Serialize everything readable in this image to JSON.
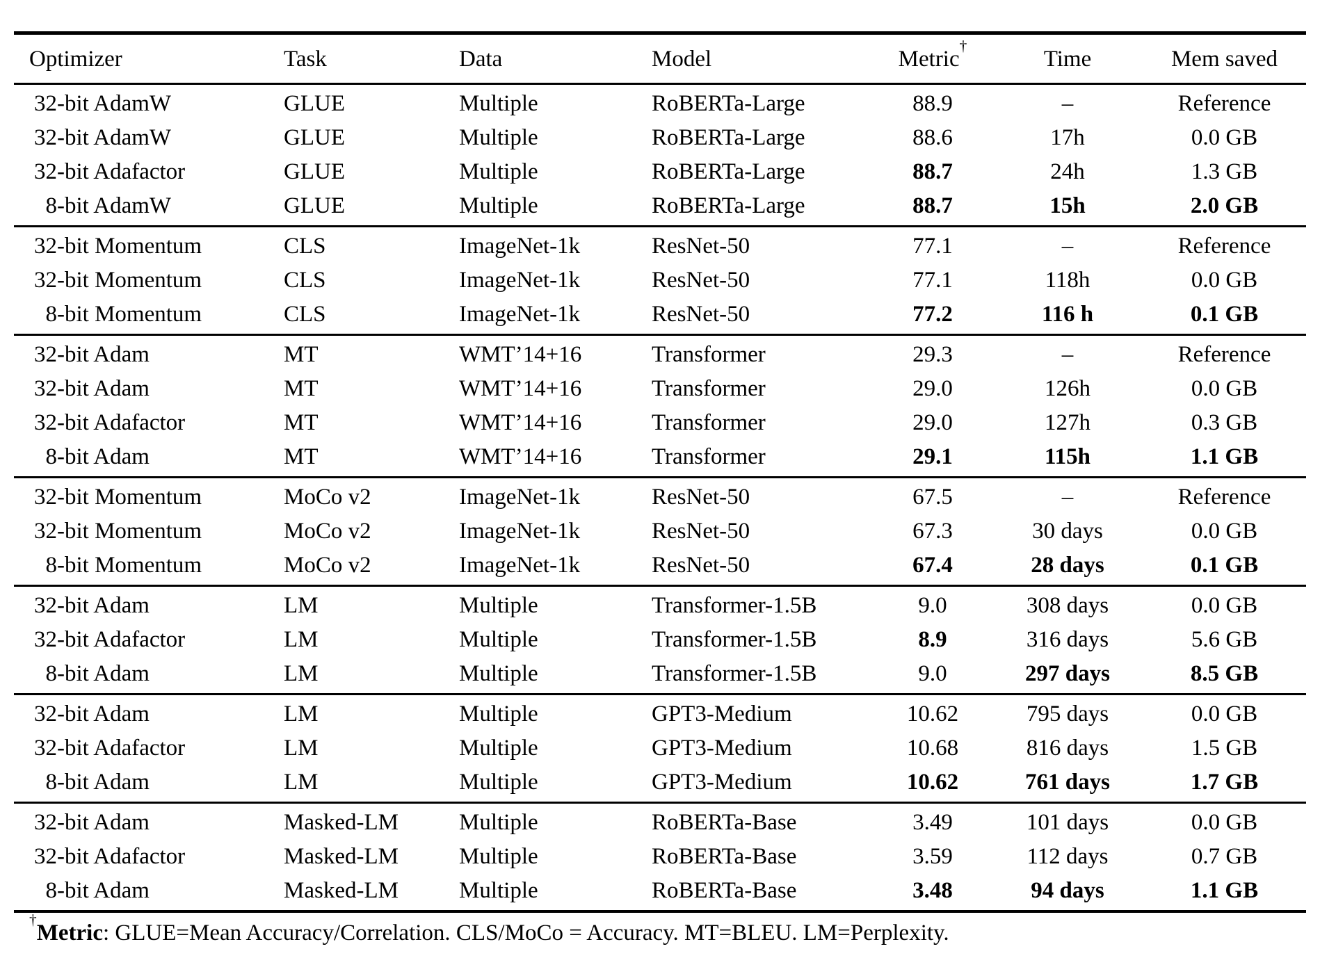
{
  "table": {
    "columns": [
      {
        "label": "Optimizer",
        "align": "left"
      },
      {
        "label": "Task",
        "align": "left"
      },
      {
        "label": "Data",
        "align": "left"
      },
      {
        "label": "Model",
        "align": "left"
      },
      {
        "label": "Metric",
        "sup": "†",
        "align": "center"
      },
      {
        "label": "Time",
        "align": "center"
      },
      {
        "label": "Mem saved",
        "align": "center"
      }
    ],
    "groups": [
      {
        "rows": [
          {
            "cells": [
              "32-bit AdamW",
              "GLUE",
              "Multiple",
              "RoBERTa-Large",
              "88.9",
              "–",
              "Reference"
            ],
            "bold": []
          },
          {
            "cells": [
              "32-bit AdamW",
              "GLUE",
              "Multiple",
              "RoBERTa-Large",
              "88.6",
              "17h",
              "0.0 GB"
            ],
            "bold": []
          },
          {
            "cells": [
              "32-bit Adafactor",
              "GLUE",
              "Multiple",
              "RoBERTa-Large",
              "88.7",
              "24h",
              "1.3 GB"
            ],
            "bold": [
              4
            ]
          },
          {
            "cells": [
              "8-bit AdamW",
              "GLUE",
              "Multiple",
              "RoBERTa-Large",
              "88.7",
              "15h",
              "2.0 GB"
            ],
            "bold": [
              4,
              5,
              6
            ]
          }
        ]
      },
      {
        "rows": [
          {
            "cells": [
              "32-bit Momentum",
              "CLS",
              "ImageNet-1k",
              "ResNet-50",
              "77.1",
              "–",
              "Reference"
            ],
            "bold": []
          },
          {
            "cells": [
              "32-bit Momentum",
              "CLS",
              "ImageNet-1k",
              "ResNet-50",
              "77.1",
              "118h",
              "0.0 GB"
            ],
            "bold": []
          },
          {
            "cells": [
              "8-bit Momentum",
              "CLS",
              "ImageNet-1k",
              "ResNet-50",
              "77.2",
              "116 h",
              "0.1 GB"
            ],
            "bold": [
              4,
              5,
              6
            ]
          }
        ]
      },
      {
        "rows": [
          {
            "cells": [
              "32-bit Adam",
              "MT",
              "WMT’14+16",
              "Transformer",
              "29.3",
              "–",
              "Reference"
            ],
            "bold": []
          },
          {
            "cells": [
              "32-bit Adam",
              "MT",
              "WMT’14+16",
              "Transformer",
              "29.0",
              "126h",
              "0.0 GB"
            ],
            "bold": []
          },
          {
            "cells": [
              "32-bit Adafactor",
              "MT",
              "WMT’14+16",
              "Transformer",
              "29.0",
              "127h",
              "0.3 GB"
            ],
            "bold": []
          },
          {
            "cells": [
              "8-bit Adam",
              "MT",
              "WMT’14+16",
              "Transformer",
              "29.1",
              "115h",
              "1.1 GB"
            ],
            "bold": [
              4,
              5,
              6
            ]
          }
        ]
      },
      {
        "rows": [
          {
            "cells": [
              "32-bit Momentum",
              "MoCo v2",
              "ImageNet-1k",
              "ResNet-50",
              "67.5",
              "–",
              "Reference"
            ],
            "bold": []
          },
          {
            "cells": [
              "32-bit Momentum",
              "MoCo v2",
              "ImageNet-1k",
              "ResNet-50",
              "67.3",
              "30 days",
              "0.0 GB"
            ],
            "bold": []
          },
          {
            "cells": [
              "8-bit Momentum",
              "MoCo v2",
              "ImageNet-1k",
              "ResNet-50",
              "67.4",
              "28 days",
              "0.1 GB"
            ],
            "bold": [
              4,
              5,
              6
            ]
          }
        ]
      },
      {
        "rows": [
          {
            "cells": [
              "32-bit Adam",
              "LM",
              "Multiple",
              "Transformer-1.5B",
              "9.0",
              "308 days",
              "0.0 GB"
            ],
            "bold": []
          },
          {
            "cells": [
              "32-bit Adafactor",
              "LM",
              "Multiple",
              "Transformer-1.5B",
              "8.9",
              "316 days",
              "5.6 GB"
            ],
            "bold": [
              4
            ]
          },
          {
            "cells": [
              "8-bit Adam",
              "LM",
              "Multiple",
              "Transformer-1.5B",
              "9.0",
              "297 days",
              "8.5 GB"
            ],
            "bold": [
              5,
              6
            ]
          }
        ]
      },
      {
        "rows": [
          {
            "cells": [
              "32-bit Adam",
              "LM",
              "Multiple",
              "GPT3-Medium",
              "10.62",
              "795 days",
              "0.0 GB"
            ],
            "bold": []
          },
          {
            "cells": [
              "32-bit Adafactor",
              "LM",
              "Multiple",
              "GPT3-Medium",
              "10.68",
              "816 days",
              "1.5 GB"
            ],
            "bold": []
          },
          {
            "cells": [
              "8-bit Adam",
              "LM",
              "Multiple",
              "GPT3-Medium",
              "10.62",
              "761 days",
              "1.7 GB"
            ],
            "bold": [
              4,
              5,
              6
            ]
          }
        ]
      },
      {
        "rows": [
          {
            "cells": [
              "32-bit Adam",
              "Masked-LM",
              "Multiple",
              "RoBERTa-Base",
              "3.49",
              "101 days",
              "0.0 GB"
            ],
            "bold": []
          },
          {
            "cells": [
              "32-bit Adafactor",
              "Masked-LM",
              "Multiple",
              "RoBERTa-Base",
              "3.59",
              "112 days",
              "0.7 GB"
            ],
            "bold": []
          },
          {
            "cells": [
              "8-bit Adam",
              "Masked-LM",
              "Multiple",
              "RoBERTa-Base",
              "3.48",
              "94 days",
              "1.1 GB"
            ],
            "bold": [
              4,
              5,
              6
            ]
          }
        ]
      }
    ]
  },
  "footnote": {
    "dagger": "†",
    "label": "Metric",
    "text": ": GLUE=Mean Accuracy/Correlation. CLS/MoCo = Accuracy. MT=BLEU. LM=Perplexity."
  },
  "colors": {
    "text": "#000000",
    "background": "#ffffff",
    "rule": "#000000"
  }
}
